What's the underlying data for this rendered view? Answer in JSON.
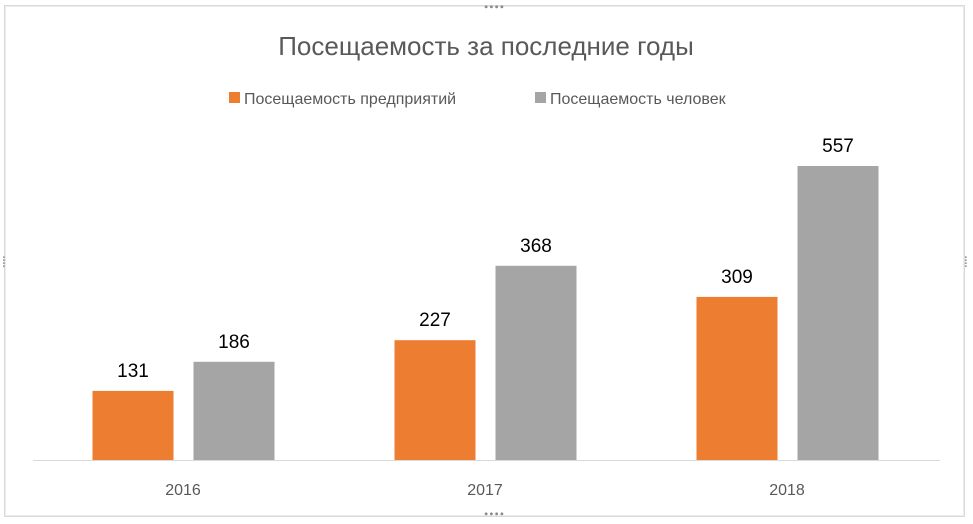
{
  "chart_data": {
    "type": "bar",
    "title": "Посещаемость за последние годы",
    "categories": [
      "2016",
      "2017",
      "2018"
    ],
    "series": [
      {
        "name": "Посещаемость предприятий",
        "values": [
          131,
          227,
          309
        ],
        "color": "#ed7d31"
      },
      {
        "name": "Посещаемость человек",
        "values": [
          186,
          368,
          557
        ],
        "color": "#a5a5a5"
      }
    ],
    "xlabel": "",
    "ylabel": "",
    "ylim": [
      0,
      557
    ],
    "grid": false,
    "legend": "top",
    "data_labels": true
  }
}
